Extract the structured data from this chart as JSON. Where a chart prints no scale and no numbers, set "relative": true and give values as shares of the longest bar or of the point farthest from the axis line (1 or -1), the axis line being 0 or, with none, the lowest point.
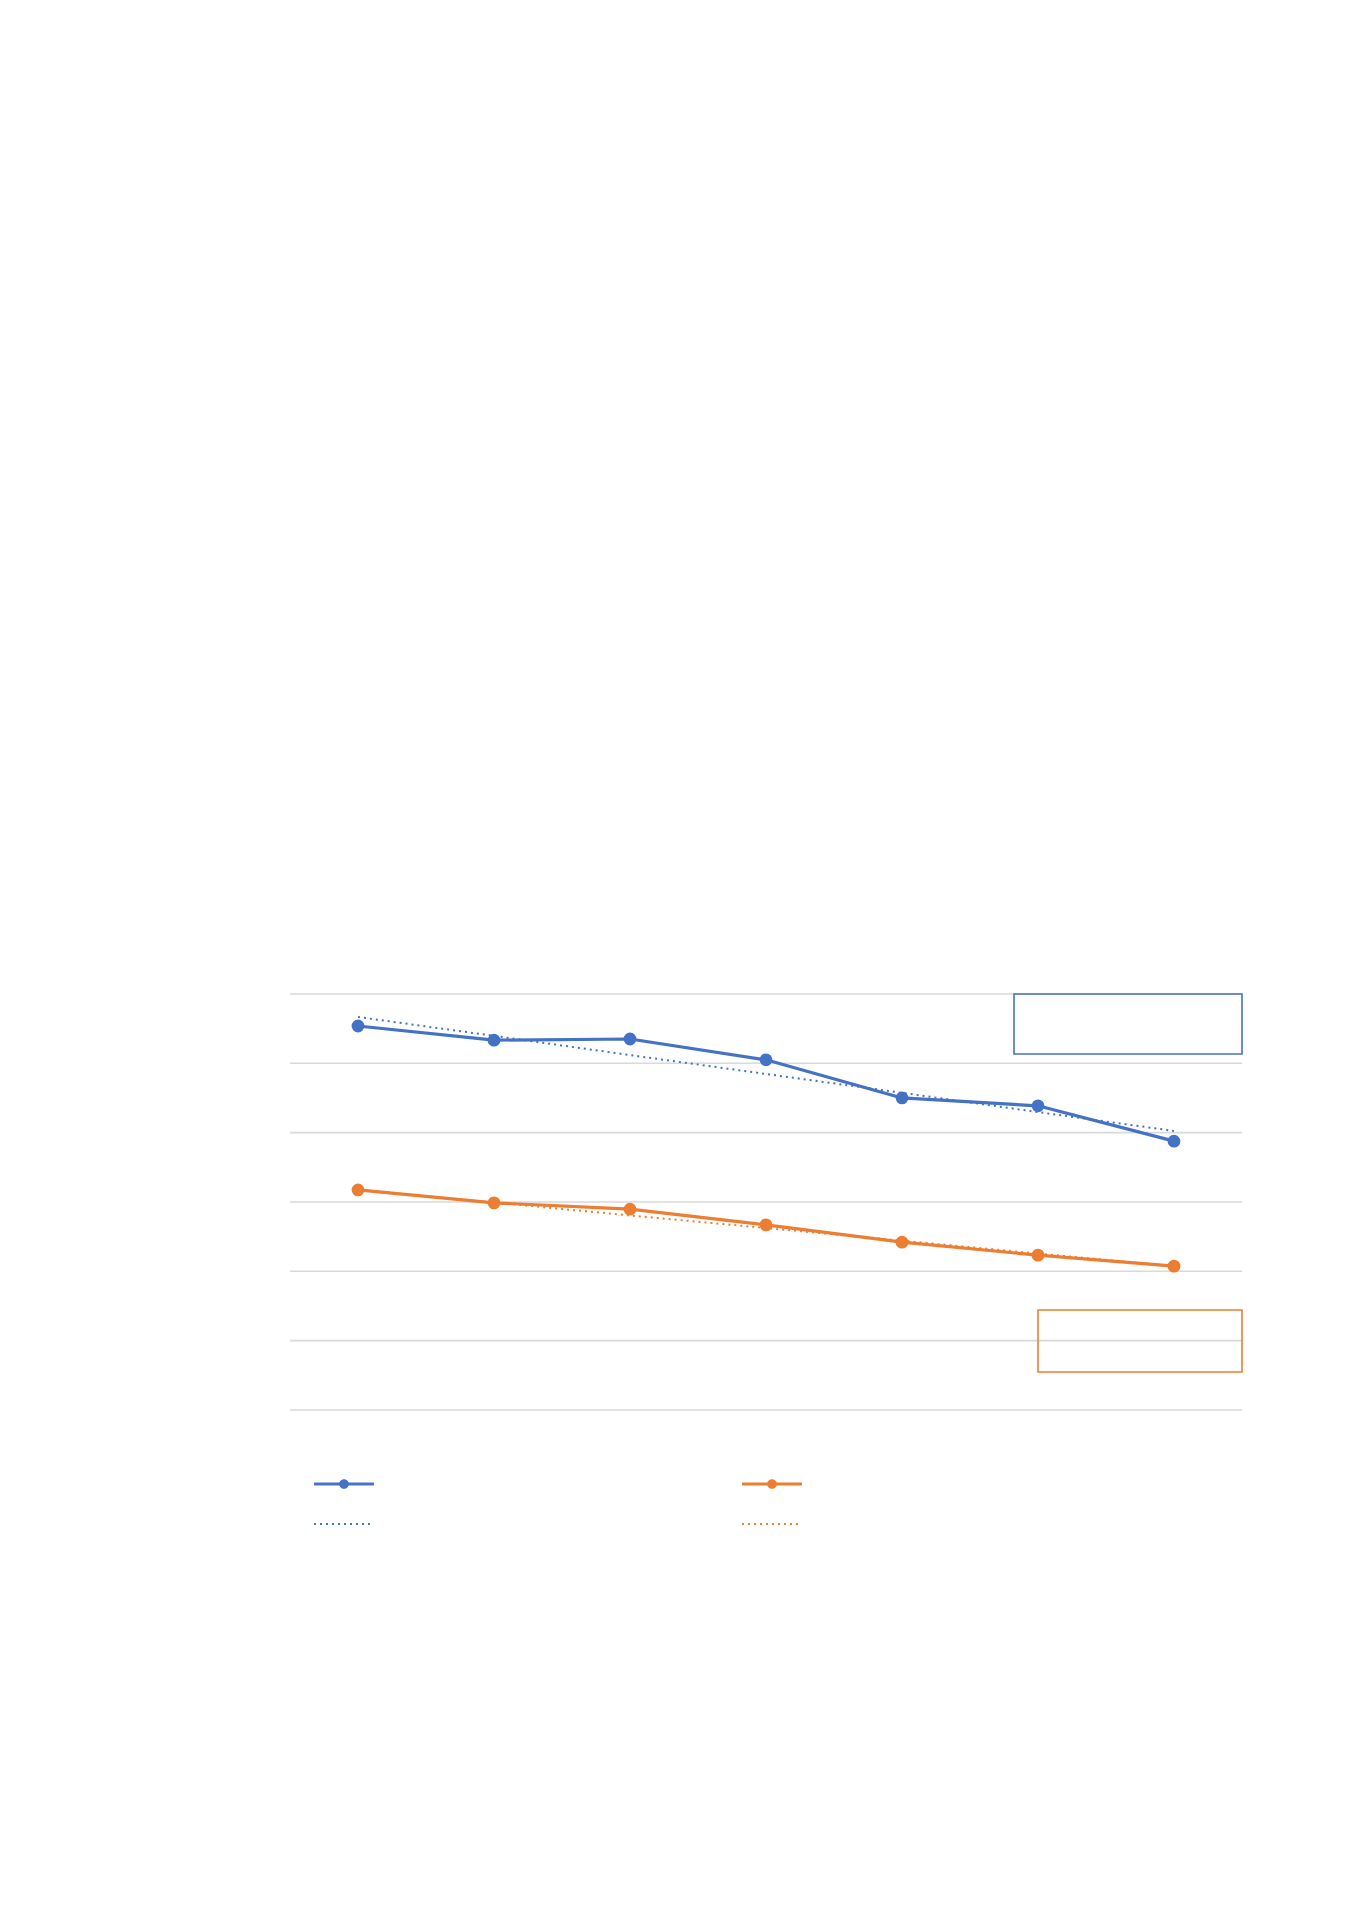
{
  "chart_data": {
    "type": "line",
    "relative": true,
    "grid": "y",
    "categories": [
      null,
      null,
      null,
      null,
      null,
      null,
      null
    ],
    "series": [
      {
        "color": "#4472c4",
        "marker": "circle",
        "line_style": "solid",
        "values": [
          0.977,
          0.941,
          0.944,
          0.891,
          0.794,
          0.774,
          0.684
        ]
      },
      {
        "color": "#ed7d31",
        "marker": "circle",
        "line_style": "solid",
        "values": [
          0.56,
          0.527,
          0.511,
          0.471,
          0.427,
          0.394,
          0.366
        ]
      },
      {
        "color": "#4472c4",
        "marker": "none",
        "line_style": "dotted",
        "values": [
          1,
          0.952,
          0.903,
          0.855,
          0.807,
          0.758,
          0.71
        ]
      },
      {
        "color": "#ed7d31",
        "marker": "none",
        "line_style": "dotted",
        "values": [
          0.56,
          0.528,
          0.495,
          0.463,
          0.431,
          0.398,
          0.366
        ]
      }
    ]
  }
}
